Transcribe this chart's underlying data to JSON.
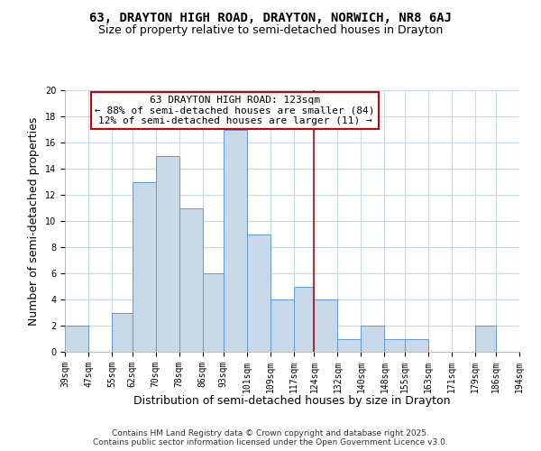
{
  "title": "63, DRAYTON HIGH ROAD, DRAYTON, NORWICH, NR8 6AJ",
  "subtitle": "Size of property relative to semi-detached houses in Drayton",
  "xlabel": "Distribution of semi-detached houses by size in Drayton",
  "ylabel": "Number of semi-detached properties",
  "bin_edges": [
    39,
    47,
    55,
    62,
    70,
    78,
    86,
    93,
    101,
    109,
    117,
    124,
    132,
    140,
    148,
    155,
    163,
    171,
    179,
    186,
    194
  ],
  "bar_heights": [
    2,
    0,
    3,
    13,
    15,
    11,
    6,
    17,
    9,
    4,
    5,
    4,
    1,
    2,
    1,
    1,
    0,
    0,
    2,
    0
  ],
  "bar_color": "#c8d8e8",
  "bar_edge_color": "#5b9bd5",
  "vline_x": 124,
  "vline_color": "#cc0000",
  "annotation_text": "63 DRAYTON HIGH ROAD: 123sqm\n← 88% of semi-detached houses are smaller (84)\n12% of semi-detached houses are larger (11) →",
  "annotation_box_color": "#ffffff",
  "annotation_box_edge_color": "#cc0000",
  "ylim": [
    0,
    20
  ],
  "yticks": [
    0,
    2,
    4,
    6,
    8,
    10,
    12,
    14,
    16,
    18,
    20
  ],
  "tick_labels": [
    "39sqm",
    "47sqm",
    "55sqm",
    "62sqm",
    "70sqm",
    "78sqm",
    "86sqm",
    "93sqm",
    "101sqm",
    "109sqm",
    "117sqm",
    "124sqm",
    "132sqm",
    "140sqm",
    "148sqm",
    "155sqm",
    "163sqm",
    "171sqm",
    "179sqm",
    "186sqm",
    "194sqm"
  ],
  "footer_text": "Contains HM Land Registry data © Crown copyright and database right 2025.\nContains public sector information licensed under the Open Government Licence v3.0.",
  "background_color": "#ffffff",
  "grid_color": "#c8d8e8",
  "title_fontsize": 10,
  "subtitle_fontsize": 9,
  "axis_label_fontsize": 9,
  "tick_fontsize": 7,
  "annotation_fontsize": 8,
  "footer_fontsize": 6.5
}
